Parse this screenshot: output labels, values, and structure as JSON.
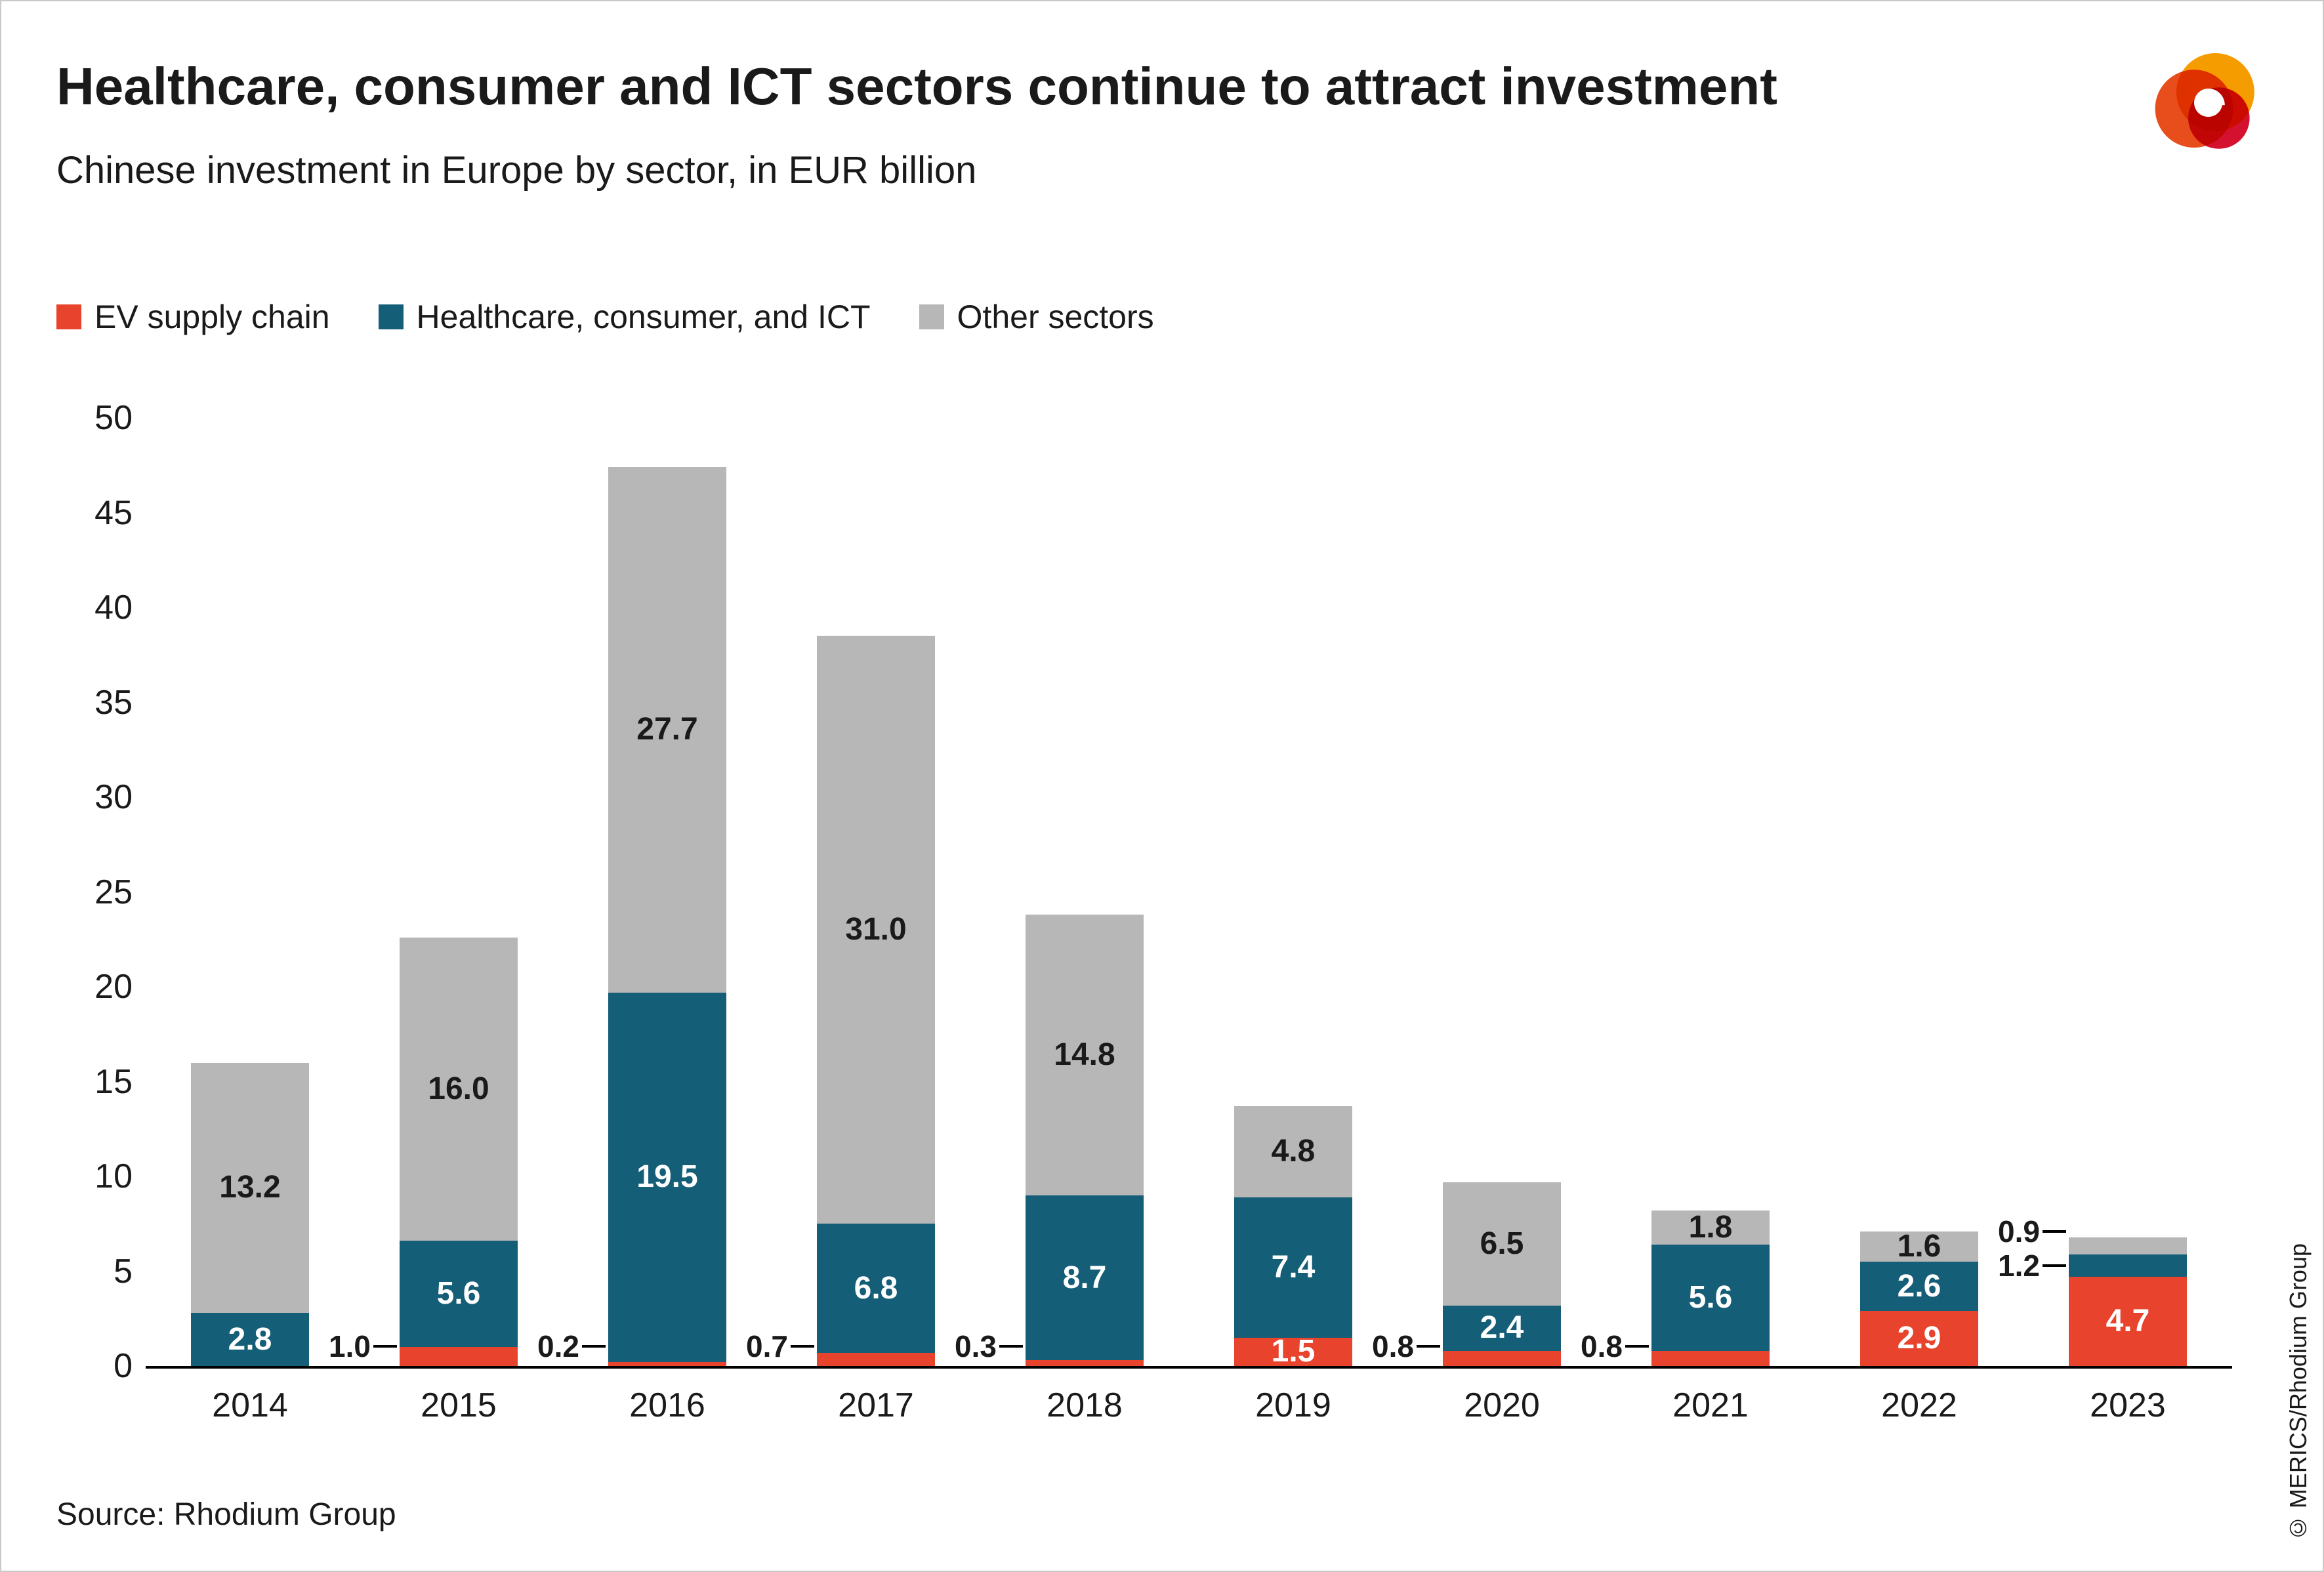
{
  "header": {
    "title": "Healthcare, consumer and ICT sectors continue to attract investment",
    "subtitle": "Chinese investment in Europe by sector, in EUR billion"
  },
  "legend": [
    {
      "label": "EV supply chain",
      "color": "#e8432c"
    },
    {
      "label": "Healthcare, consumer, and ICT",
      "color": "#155e77"
    },
    {
      "label": "Other sectors",
      "color": "#b7b7b7"
    }
  ],
  "chart_data": {
    "type": "bar",
    "stacked": true,
    "title": "Healthcare, consumer and ICT sectors continue to attract investment",
    "subtitle": "Chinese investment in Europe by sector, in EUR billion",
    "categories": [
      "2014",
      "2015",
      "2016",
      "2017",
      "2018",
      "2019",
      "2020",
      "2021",
      "2022",
      "2023"
    ],
    "series": [
      {
        "name": "EV supply chain",
        "color": "#e8432c",
        "label_color": "#ffffff",
        "values": [
          0,
          1.0,
          0.2,
          0.7,
          0.3,
          1.5,
          0.8,
          0.8,
          2.9,
          4.7
        ]
      },
      {
        "name": "Healthcare, consumer, and ICT",
        "color": "#155e77",
        "label_color": "#ffffff",
        "values": [
          2.8,
          5.6,
          19.5,
          6.8,
          8.7,
          7.4,
          2.4,
          5.6,
          2.6,
          1.2
        ]
      },
      {
        "name": "Other sectors",
        "color": "#b7b7b7",
        "label_color": "#1a1a1a",
        "values": [
          13.2,
          16.0,
          27.7,
          31.0,
          14.8,
          4.8,
          6.5,
          1.8,
          1.6,
          0.9
        ]
      }
    ],
    "ylim": [
      0,
      50
    ],
    "yticks": [
      0,
      5,
      10,
      15,
      20,
      25,
      30,
      35,
      40,
      45,
      50
    ],
    "grid": false,
    "legend_position": "top-left"
  },
  "logo": {
    "name": "MERICS logo",
    "colors": [
      "#f59c00",
      "#e84e1b",
      "#d51130"
    ]
  },
  "footer": {
    "source": "Source: Rhodium Group",
    "credit": "© MERICS/Rhodium Group"
  }
}
